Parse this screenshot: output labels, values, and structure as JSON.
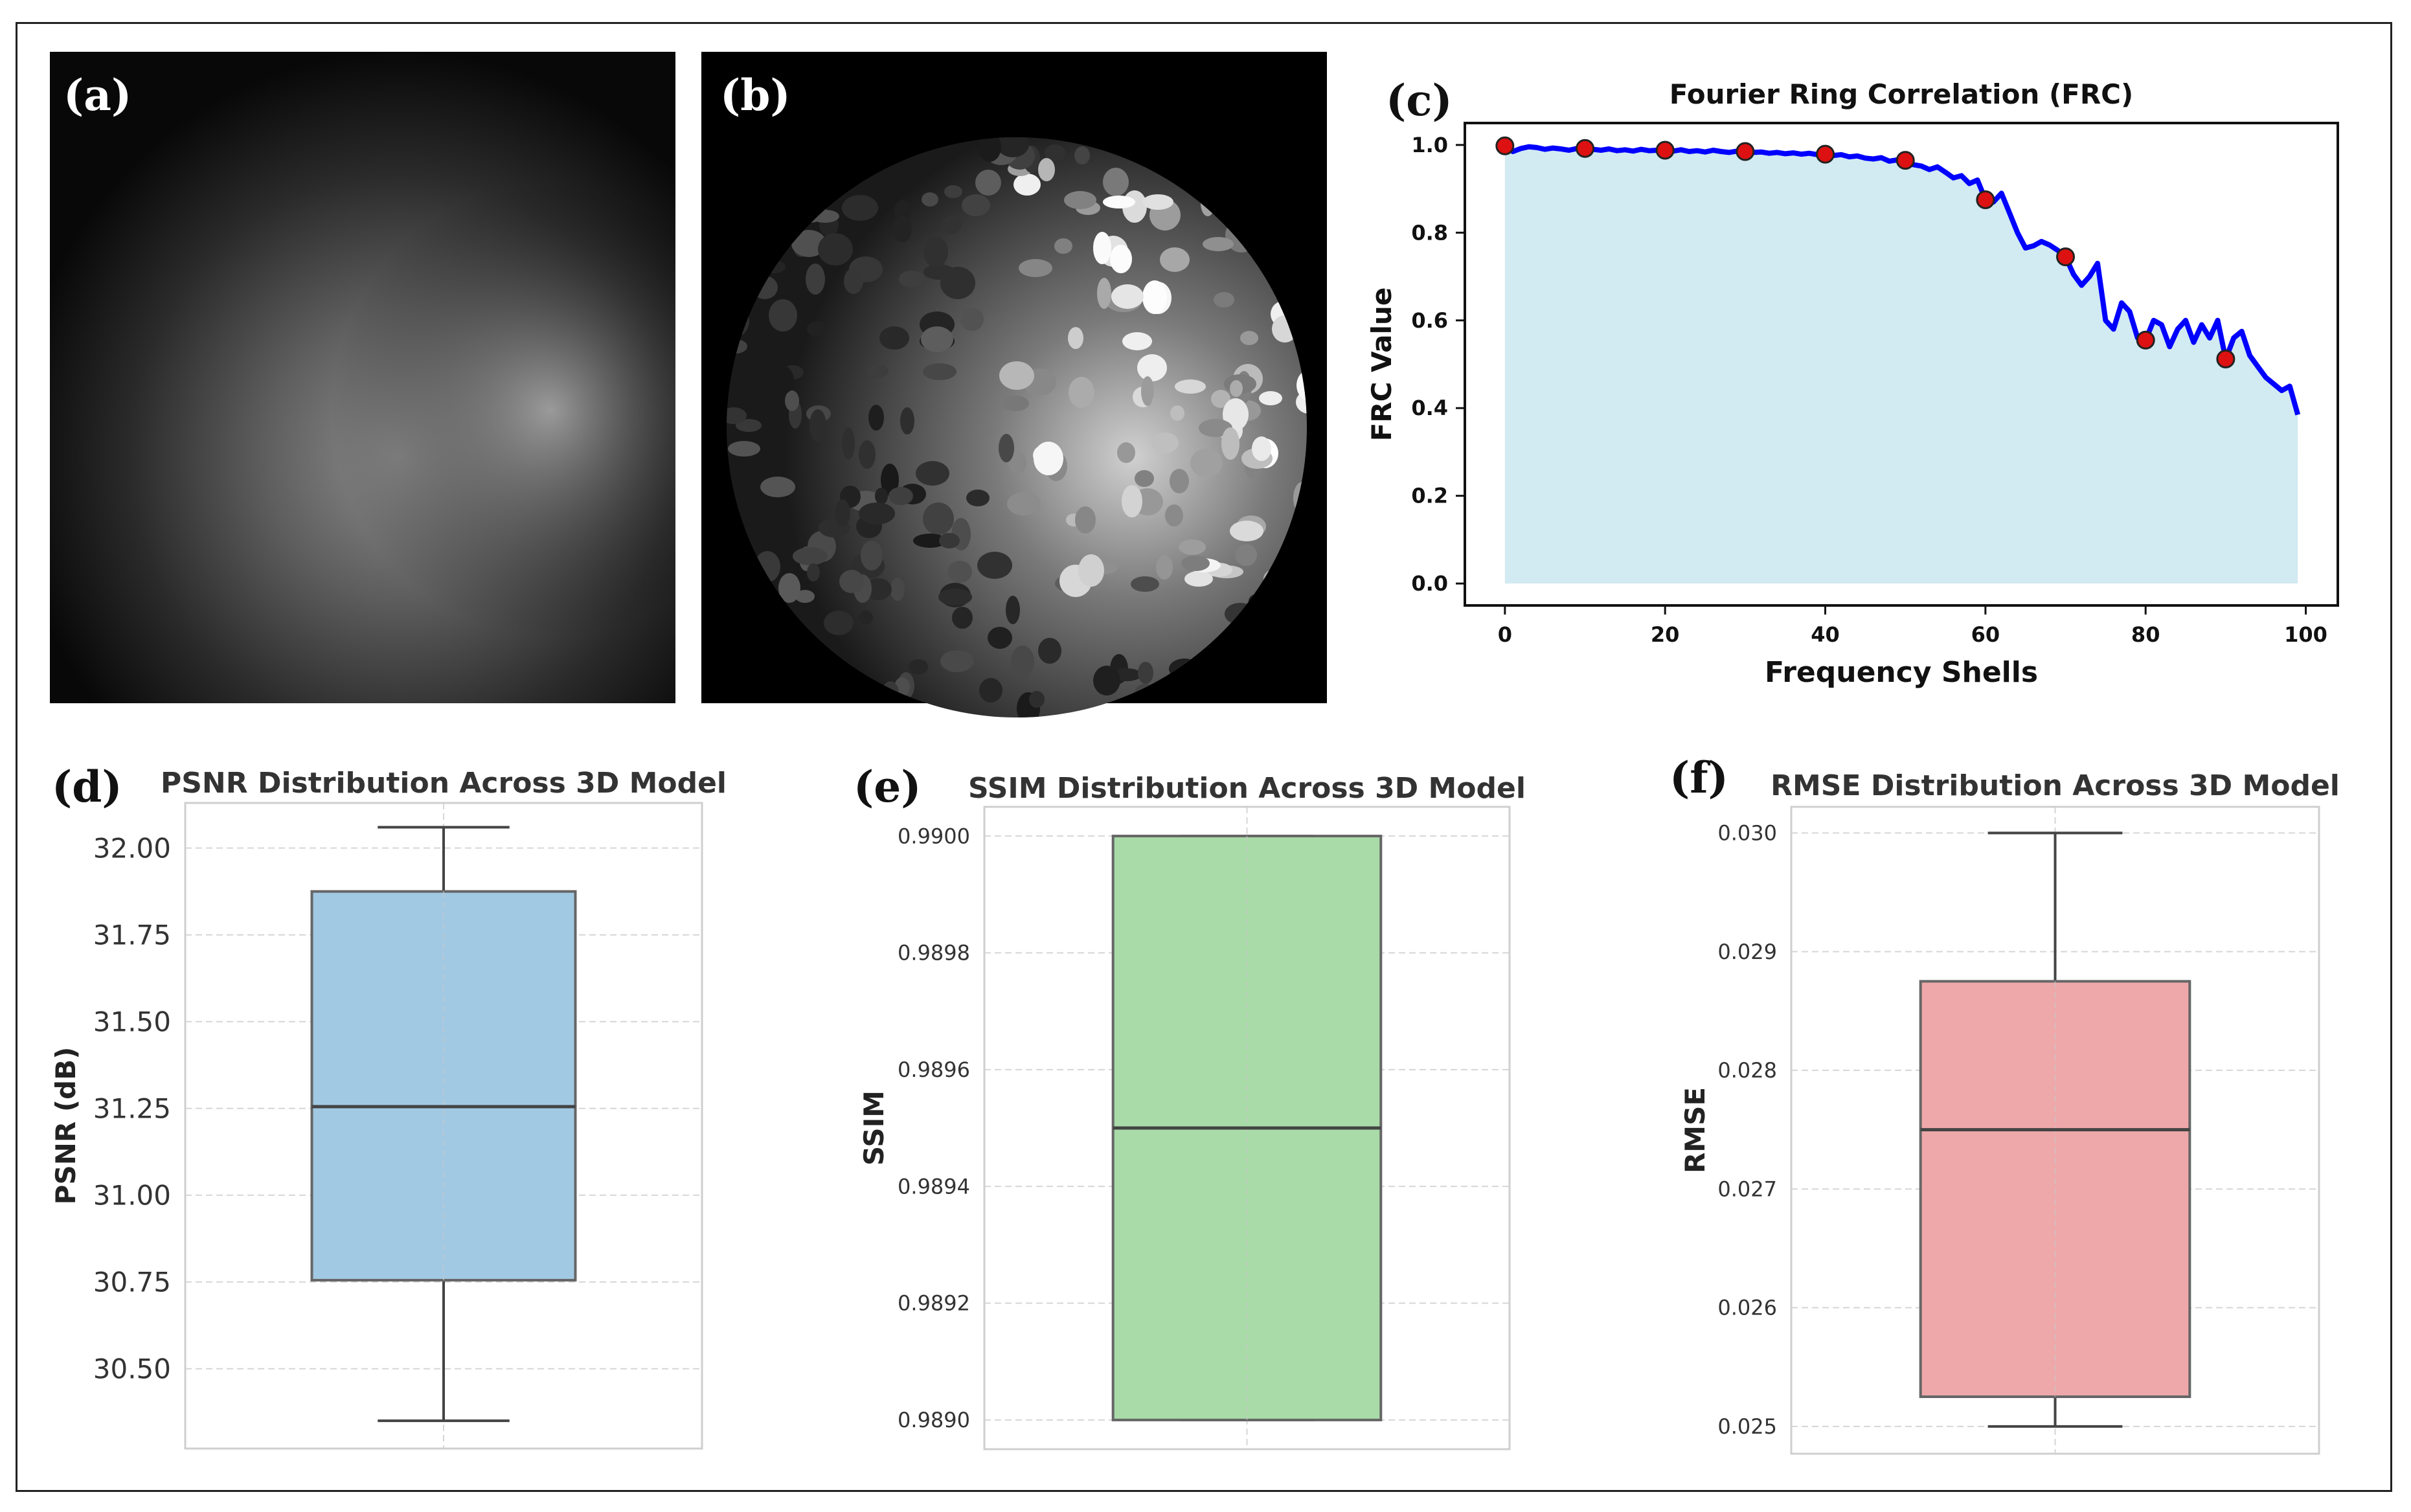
{
  "panels": {
    "a": {
      "label": "(a)"
    },
    "b": {
      "label": "(b)"
    },
    "c": {
      "label": "(c)"
    },
    "d": {
      "label": "(d)"
    },
    "e": {
      "label": "(e)"
    },
    "f": {
      "label": "(f)"
    }
  },
  "chart_data": [
    {
      "id": "c",
      "type": "line",
      "title": "Fourier Ring Correlation (FRC)",
      "xlabel": "Frequency Shells",
      "ylabel": "FRC Value",
      "xlim": [
        -5,
        104
      ],
      "ylim": [
        -0.05,
        1.05
      ],
      "xticks": [
        0,
        20,
        40,
        60,
        80,
        100
      ],
      "yticks": [
        0.0,
        0.2,
        0.4,
        0.6,
        0.8,
        1.0
      ],
      "xtick_labels": [
        "0",
        "20",
        "40",
        "60",
        "80",
        "100"
      ],
      "ytick_labels": [
        "0.0",
        "0.2",
        "0.4",
        "0.6",
        "0.8",
        "1.0"
      ],
      "line_color": "#0000ff",
      "fill_color": "#add8e6",
      "marker_color": "#dd1111",
      "series": [
        {
          "name": "FRC",
          "x": [
            0,
            1,
            2,
            3,
            4,
            5,
            6,
            7,
            8,
            9,
            10,
            11,
            12,
            13,
            14,
            15,
            16,
            17,
            18,
            19,
            20,
            21,
            22,
            23,
            24,
            25,
            26,
            27,
            28,
            29,
            30,
            31,
            32,
            33,
            34,
            35,
            36,
            37,
            38,
            39,
            40,
            41,
            42,
            43,
            44,
            45,
            46,
            47,
            48,
            49,
            50,
            51,
            52,
            53,
            54,
            55,
            56,
            57,
            58,
            59,
            60,
            61,
            62,
            63,
            64,
            65,
            66,
            67,
            68,
            69,
            70,
            71,
            72,
            73,
            74,
            75,
            76,
            77,
            78,
            79,
            80,
            81,
            82,
            83,
            84,
            85,
            86,
            87,
            88,
            89,
            90,
            91,
            92,
            93,
            94,
            95,
            96,
            97,
            98,
            99
          ],
          "y": [
            0.998,
            0.985,
            0.992,
            0.996,
            0.994,
            0.99,
            0.993,
            0.991,
            0.988,
            0.992,
            0.992,
            0.99,
            0.988,
            0.991,
            0.987,
            0.989,
            0.986,
            0.99,
            0.987,
            0.988,
            0.988,
            0.986,
            0.989,
            0.985,
            0.987,
            0.984,
            0.988,
            0.985,
            0.983,
            0.986,
            0.985,
            0.983,
            0.984,
            0.981,
            0.983,
            0.98,
            0.982,
            0.979,
            0.981,
            0.978,
            0.979,
            0.976,
            0.978,
            0.973,
            0.975,
            0.97,
            0.968,
            0.971,
            0.963,
            0.966,
            0.965,
            0.955,
            0.952,
            0.944,
            0.95,
            0.938,
            0.925,
            0.93,
            0.912,
            0.92,
            0.875,
            0.87,
            0.89,
            0.845,
            0.8,
            0.765,
            0.77,
            0.78,
            0.772,
            0.76,
            0.745,
            0.705,
            0.68,
            0.7,
            0.73,
            0.6,
            0.58,
            0.64,
            0.62,
            0.56,
            0.555,
            0.6,
            0.59,
            0.54,
            0.58,
            0.6,
            0.55,
            0.59,
            0.56,
            0.6,
            0.512,
            0.56,
            0.575,
            0.52,
            0.495,
            0.47,
            0.455,
            0.44,
            0.45,
            0.385
          ]
        }
      ],
      "markers": {
        "x": [
          0,
          10,
          20,
          30,
          40,
          50,
          60,
          70,
          80,
          90
        ],
        "y": [
          0.998,
          0.992,
          0.988,
          0.985,
          0.979,
          0.965,
          0.875,
          0.745,
          0.555,
          0.512
        ]
      }
    },
    {
      "id": "d",
      "type": "box",
      "title": "PSNR Distribution Across 3D Model",
      "ylabel": "PSNR (dB)",
      "ylim": [
        30.27,
        32.13
      ],
      "yticks": [
        30.5,
        30.75,
        31.0,
        31.25,
        31.5,
        31.75,
        32.0
      ],
      "ytick_labels": [
        "30.50",
        "30.75",
        "31.00",
        "31.25",
        "31.50",
        "31.75",
        "32.00"
      ],
      "color": "#a1c9e4",
      "box": {
        "whislo": 30.35,
        "q1": 30.755,
        "med": 31.255,
        "q3": 31.875,
        "whishi": 32.06
      }
    },
    {
      "id": "e",
      "type": "box",
      "title": "SSIM Distribution Across 3D Model",
      "ylabel": "SSIM",
      "ylim": [
        0.98895,
        0.99005
      ],
      "yticks": [
        0.989,
        0.9892,
        0.9894,
        0.9896,
        0.9898,
        0.99
      ],
      "ytick_labels": [
        "0.9890",
        "0.9892",
        "0.9894",
        "0.9896",
        "0.9898",
        "0.9900"
      ],
      "color": "#a8dba8",
      "box": {
        "whislo": 0.989,
        "q1": 0.989,
        "med": 0.9895,
        "q3": 0.99,
        "whishi": 0.99
      }
    },
    {
      "id": "f",
      "type": "box",
      "title": "RMSE Distribution Across 3D Model",
      "ylabel": "RMSE",
      "ylim": [
        0.02477,
        0.03022
      ],
      "yticks": [
        0.025,
        0.026,
        0.027,
        0.028,
        0.029,
        0.03
      ],
      "ytick_labels": [
        "0.025",
        "0.026",
        "0.027",
        "0.028",
        "0.029",
        "0.030"
      ],
      "color": "#eea8aa",
      "box": {
        "whislo": 0.025,
        "q1": 0.02525,
        "med": 0.0275,
        "q3": 0.02875,
        "whishi": 0.03
      }
    }
  ]
}
